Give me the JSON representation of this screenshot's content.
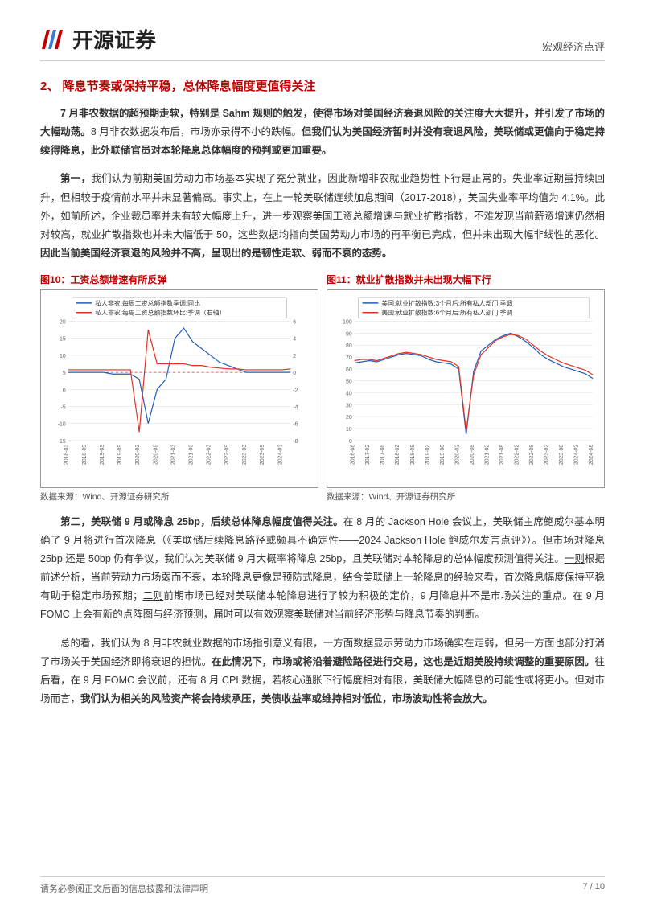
{
  "header": {
    "logo_text": "开源证券",
    "right_text": "宏观经济点评"
  },
  "section": {
    "title": "2、 降息节奏或保持平稳，总体降息幅度更值得关注"
  },
  "paragraphs": {
    "p1_a": "7 月非农数据的超预期走软，特别是 Sahm 规则的触发，使得市场对美国经济衰退风险的关注度大大提升，并引发了市场的大幅动荡。",
    "p1_b": "8 月非农数据发布后，市场亦录得不小的跌幅。",
    "p1_c": "但我们认为美国经济暂时并没有衰退风险，美联储或更偏向于稳定持续得降息，此外联储官员对本轮降息总体幅度的预判或更加重要。",
    "p2_a": "第一，",
    "p2_b": "我们认为前期美国劳动力市场基本实现了充分就业，因此新增非农就业趋势性下行是正常的。失业率近期虽持续回升，但相较于疫情前水平并未显著偏高。事实上，在上一轮美联储连续加息期间（2017-2018），美国失业率平均值为 4.1%。此外，如前所述，企业裁员率并未有较大幅度上升，进一步观察美国工资总额增速与就业扩散指数，不难发现当前薪资增速仍然相对较高，就业扩散指数也并未大幅低于 50，这些数据均指向美国劳动力市场的再平衡已完成，但并未出现大幅非线性的恶化。",
    "p2_c": "因此当前美国经济衰退的风险并不高，呈现出的是韧性走软、弱而不衰的态势。",
    "p3_a": "第二，美联储 9 月或降息 25bp，后续总体降息幅度值得关注。",
    "p3_b": "在 8 月的 Jackson Hole 会议上，美联储主席鲍威尔基本明确了 9 月将进行首次降息（《美联储后续降息路径或颇具不确定性——2024 Jackson Hole 鲍威尔发言点评》）。但市场对降息 25bp 还是 50bp 仍有争议，我们认为美联储 9 月大概率将降息 25bp，且美联储对本轮降息的总体幅度预测值得关注。",
    "p3_c": "一则",
    "p3_d": "根据前述分析，当前劳动力市场弱而不衰，本轮降息更像是预防式降息，结合美联储上一轮降息的经验来看，首次降息幅度保持平稳有助于稳定市场预期；",
    "p3_e": "二则",
    "p3_f": "前期市场已经对美联储本轮降息进行了较为积极的定价，9 月降息并不是市场关注的重点。在 9 月 FOMC 上会有新的点阵图与经济预测，届时可以有效观察美联储对当前经济形势与降息节奏的判断。",
    "p4_a": "总的看，我们认为 8 月非农就业数据的市场指引意义有限，一方面数据显示劳动力市场确实在走弱，但另一方面也部分打消了市场关于美国经济即将衰退的担忧。",
    "p4_b": "在此情况下，市场或将沿着避险路径进行交易，这也是近期美股持续调整的重要原因。",
    "p4_c": "往后看，在 9 月 FOMC 会议前，还有 8 月 CPI 数据，若核心通胀下行幅度相对有限，美联储大幅降息的可能性或将更小。但对市场而言，",
    "p4_d": "我们认为相关的风险资产将会持续承压，美债收益率或维持相对低位，市场波动性将会放大。"
  },
  "chart_left": {
    "title": "图10：工资总额增速有所反弹",
    "source": "数据来源：Wind、开源证券研究所",
    "legend": {
      "blue": "私人非农:每周工资总额指数季调:同比",
      "red": "私人非农:每周工资总额指数环比:季调（右轴）"
    },
    "x_labels": [
      "2018-03",
      "2018-06",
      "2018-09",
      "2018-12",
      "2019-03",
      "2019-06",
      "2019-09",
      "2019-12",
      "2020-03",
      "2020-06",
      "2020-09",
      "2020-12",
      "2021-03",
      "2021-06",
      "2021-09",
      "2021-12",
      "2022-03",
      "2022-06",
      "2022-09",
      "2022-12",
      "2023-03",
      "2023-06",
      "2023-09",
      "2023-12",
      "2024-03",
      "2024-06"
    ],
    "left_axis": {
      "min": -15,
      "max": 20,
      "step": 5
    },
    "right_axis": {
      "min": -8,
      "max": 6,
      "step": 2
    },
    "blue_series": [
      5,
      5,
      5,
      5,
      5,
      4.5,
      4.5,
      4.5,
      3,
      -10,
      0,
      3,
      15,
      18,
      14,
      12,
      10,
      8,
      7,
      6,
      5,
      5,
      5,
      5,
      5,
      5
    ],
    "red_series": [
      0.3,
      0.3,
      0.3,
      0.3,
      0.3,
      0.3,
      0.3,
      0.3,
      -7,
      5,
      1,
      1,
      1,
      1,
      0.8,
      0.8,
      0.6,
      0.5,
      0.4,
      0.4,
      0.3,
      0.3,
      0.3,
      0.3,
      0.3,
      0.4
    ],
    "colors": {
      "blue": "#1f5eb8",
      "red": "#e03126",
      "grid": "#dddddd",
      "axis": "#666666",
      "text": "#333333",
      "red_dash": "#e03126"
    },
    "line_width": 1.2,
    "font_size_axis": 7,
    "font_size_legend": 8
  },
  "chart_right": {
    "title": "图11：就业扩散指数并未出现大幅下行",
    "source": "数据来源：Wind、开源证券研究所",
    "legend": {
      "blue": "美国:就业扩散指数:3个月后:所有私人部门:季调",
      "red": "美国:就业扩散指数:6个月后:所有私人部门:季调"
    },
    "x_labels": [
      "2016-08",
      "2016-11",
      "2017-02",
      "2017-05",
      "2017-08",
      "2017-11",
      "2018-02",
      "2018-05",
      "2018-08",
      "2018-11",
      "2019-02",
      "2019-05",
      "2019-08",
      "2019-11",
      "2020-02",
      "2020-05",
      "2020-08",
      "2020-11",
      "2021-02",
      "2021-05",
      "2021-08",
      "2021-11",
      "2022-02",
      "2022-05",
      "2022-08",
      "2022-11",
      "2023-02",
      "2023-05",
      "2023-08",
      "2023-11",
      "2024-02",
      "2024-05",
      "2024-08"
    ],
    "y_axis": {
      "min": 0,
      "max": 100,
      "step": 10
    },
    "blue_series": [
      65,
      66,
      67,
      66,
      68,
      70,
      72,
      73,
      72,
      71,
      68,
      66,
      65,
      64,
      60,
      5,
      58,
      75,
      80,
      85,
      88,
      90,
      87,
      83,
      78,
      72,
      68,
      65,
      62,
      60,
      58,
      56,
      52
    ],
    "red_series": [
      67,
      68,
      68,
      67,
      69,
      71,
      73,
      74,
      73,
      72,
      70,
      68,
      67,
      66,
      62,
      8,
      55,
      72,
      78,
      84,
      87,
      89,
      88,
      85,
      80,
      75,
      71,
      68,
      65,
      63,
      61,
      59,
      55
    ],
    "colors": {
      "blue": "#1f5eb8",
      "red": "#e03126",
      "grid": "#dddddd",
      "axis": "#666666",
      "text": "#333333"
    },
    "line_width": 1.2,
    "font_size_axis": 7,
    "font_size_legend": 8
  },
  "footer": {
    "left": "请务必参阅正文后面的信息披露和法律声明",
    "right": "7 / 10"
  },
  "logo_colors": {
    "red": "#c00000",
    "blue": "#3a7bd5"
  }
}
